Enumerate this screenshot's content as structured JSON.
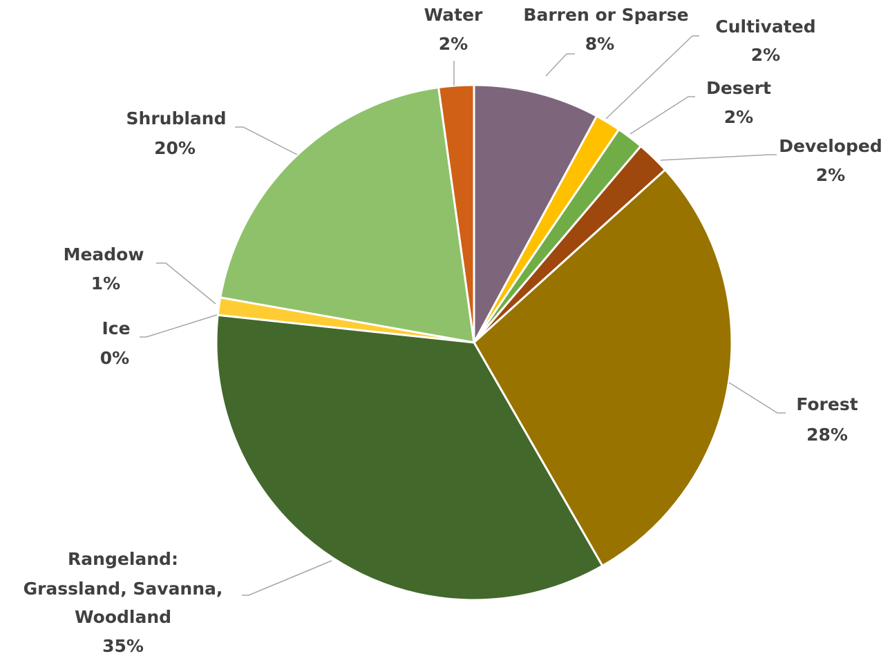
{
  "chart_data": {
    "type": "pie",
    "title": "",
    "slices": [
      {
        "name": "Barren or Sparse",
        "percent_label": "8%",
        "value": 7.9,
        "color": "#7d667b"
      },
      {
        "name": "Cultivated",
        "percent_label": "2%",
        "value": 1.6,
        "color": "#ffc000"
      },
      {
        "name": "Desert",
        "percent_label": "2%",
        "value": 1.7,
        "color": "#70ad47"
      },
      {
        "name": "Developed",
        "percent_label": "2%",
        "value": 2.1,
        "color": "#9e480e"
      },
      {
        "name": "Forest",
        "percent_label": "28%",
        "value": 28.4,
        "color": "#997300"
      },
      {
        "name": "Rangeland: Grassland, Savanna, Woodland",
        "percent_label": "35%",
        "value": 35.0,
        "color": "#43682b"
      },
      {
        "name": "Ice",
        "percent_label": "0%",
        "value": 0.0,
        "color": "#a5a5a5"
      },
      {
        "name": "Meadow",
        "percent_label": "1%",
        "value": 1.1,
        "color": "#ffcd33"
      },
      {
        "name": "Shrubland",
        "percent_label": "20%",
        "value": 20.0,
        "color": "#8fc16b"
      },
      {
        "name": "Water",
        "percent_label": "2%",
        "value": 2.2,
        "color": "#d06016"
      }
    ]
  }
}
